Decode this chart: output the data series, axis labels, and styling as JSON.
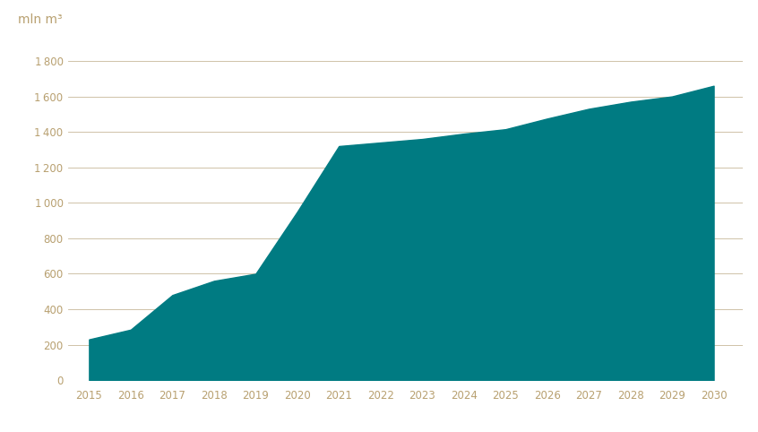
{
  "years": [
    2015,
    2016,
    2017,
    2018,
    2019,
    2020,
    2021,
    2022,
    2023,
    2024,
    2025,
    2026,
    2027,
    2028,
    2029,
    2030
  ],
  "values": [
    230,
    285,
    480,
    560,
    600,
    950,
    1320,
    1340,
    1360,
    1390,
    1415,
    1475,
    1530,
    1570,
    1600,
    1660
  ],
  "fill_color": "#007b82",
  "line_color": "#007b82",
  "background_color": "#ffffff",
  "grid_color": "#c8b89a",
  "tick_color": "#c8b89a",
  "ylabel": "mln m³",
  "ylabel_fontsize": 10,
  "yticks": [
    0,
    200,
    400,
    600,
    800,
    1000,
    1200,
    1400,
    1600,
    1800
  ],
  "ylim": [
    0,
    1900
  ],
  "xlim": [
    2014.5,
    2030.7
  ],
  "tick_label_color": "#b8a070",
  "axis_label_color": "#b8a070",
  "grid_linewidth": 0.6,
  "figsize": [
    8.46,
    4.82
  ],
  "dpi": 100
}
